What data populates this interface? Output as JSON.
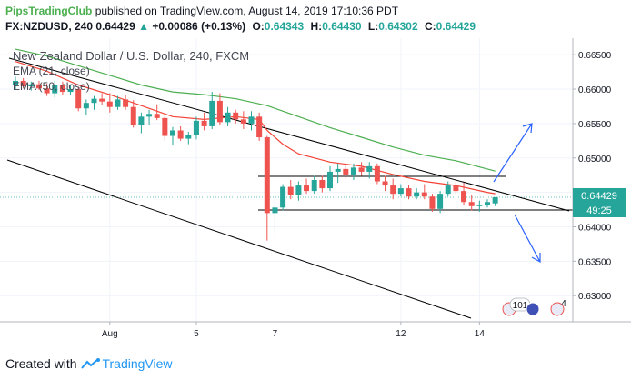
{
  "header": {
    "brand": "PipsTradingClub",
    "published": "published on TradingView.com, August 14, 2019 17:10:36 PDT",
    "symbol": "FX:NZDUSD, 240",
    "last": "0.64429",
    "change": "+0.00086 (+0.13%)",
    "o_label": "O:",
    "o": "0.64343",
    "h_label": "H:",
    "h": "0.64430",
    "l_label": "L:",
    "l": "0.64302",
    "c_label": "C:",
    "c": "0.64429"
  },
  "legend": {
    "title": "New Zealand Dollar / U.S. Dollar, 240, FXCM",
    "ema1": "EMA (21, close)",
    "ema2": "EMA (50, close)"
  },
  "footer": {
    "prefix": "Created with",
    "brand": "TradingView"
  },
  "price_tag": {
    "value": "0.64429",
    "countdown": "49:25"
  },
  "event_badges": [
    "101",
    "4"
  ],
  "colors": {
    "up": "#26a69a",
    "down": "#ef5350",
    "ema21": "#f44336",
    "ema50": "#4caf50",
    "trend": "#000000",
    "arrow": "#2962ff",
    "tag": "#26a69a",
    "brand": "#4caf50"
  },
  "chart_data": {
    "type": "candlestick",
    "title": "New Zealand Dollar / U.S. Dollar, 240, FXCM",
    "ylim": [
      0.6262,
      0.6674
    ],
    "y_ticks": [
      0.665,
      0.66,
      0.655,
      0.65,
      0.645,
      0.64,
      0.635,
      0.63
    ],
    "y_tick_labels": [
      "0.66500",
      "0.66000",
      "0.65500",
      "0.65000",
      "0.64500",
      "0.64000",
      "0.63500",
      "0.63000"
    ],
    "x_ticks": [
      {
        "label": "Aug",
        "index": 12
      },
      {
        "label": "5",
        "index": 23
      },
      {
        "label": "7",
        "index": 33
      },
      {
        "label": "12",
        "index": 49
      },
      {
        "label": "14",
        "index": 59
      }
    ],
    "candles": [
      {
        "o": 0.6606,
        "h": 0.6618,
        "l": 0.66,
        "c": 0.6612
      },
      {
        "o": 0.6612,
        "h": 0.6616,
        "l": 0.6601,
        "c": 0.6604
      },
      {
        "o": 0.6604,
        "h": 0.6611,
        "l": 0.6598,
        "c": 0.6607
      },
      {
        "o": 0.6607,
        "h": 0.6612,
        "l": 0.6599,
        "c": 0.6601
      },
      {
        "o": 0.6601,
        "h": 0.6608,
        "l": 0.659,
        "c": 0.6594
      },
      {
        "o": 0.6594,
        "h": 0.6612,
        "l": 0.6588,
        "c": 0.6606
      },
      {
        "o": 0.6606,
        "h": 0.6611,
        "l": 0.6592,
        "c": 0.6596
      },
      {
        "o": 0.6596,
        "h": 0.6606,
        "l": 0.6591,
        "c": 0.66
      },
      {
        "o": 0.66,
        "h": 0.6603,
        "l": 0.6568,
        "c": 0.6572
      },
      {
        "o": 0.6572,
        "h": 0.6585,
        "l": 0.6562,
        "c": 0.658
      },
      {
        "o": 0.658,
        "h": 0.659,
        "l": 0.657,
        "c": 0.6586
      },
      {
        "o": 0.6586,
        "h": 0.6594,
        "l": 0.6577,
        "c": 0.6582
      },
      {
        "o": 0.6582,
        "h": 0.6594,
        "l": 0.6566,
        "c": 0.6574
      },
      {
        "o": 0.6574,
        "h": 0.659,
        "l": 0.657,
        "c": 0.6585
      },
      {
        "o": 0.6585,
        "h": 0.6592,
        "l": 0.657,
        "c": 0.6574
      },
      {
        "o": 0.6574,
        "h": 0.6584,
        "l": 0.6544,
        "c": 0.6548
      },
      {
        "o": 0.6548,
        "h": 0.6566,
        "l": 0.6536,
        "c": 0.656
      },
      {
        "o": 0.656,
        "h": 0.657,
        "l": 0.6548,
        "c": 0.6564
      },
      {
        "o": 0.6564,
        "h": 0.6578,
        "l": 0.6555,
        "c": 0.6558
      },
      {
        "o": 0.6558,
        "h": 0.6562,
        "l": 0.6525,
        "c": 0.6532
      },
      {
        "o": 0.6532,
        "h": 0.6545,
        "l": 0.6518,
        "c": 0.654
      },
      {
        "o": 0.654,
        "h": 0.6546,
        "l": 0.6525,
        "c": 0.6528
      },
      {
        "o": 0.6528,
        "h": 0.6538,
        "l": 0.652,
        "c": 0.6534
      },
      {
        "o": 0.6534,
        "h": 0.656,
        "l": 0.6527,
        "c": 0.6554
      },
      {
        "o": 0.6554,
        "h": 0.6566,
        "l": 0.654,
        "c": 0.6546
      },
      {
        "o": 0.6546,
        "h": 0.6596,
        "l": 0.6542,
        "c": 0.6583
      },
      {
        "o": 0.6583,
        "h": 0.6594,
        "l": 0.6548,
        "c": 0.6552
      },
      {
        "o": 0.6552,
        "h": 0.6574,
        "l": 0.6546,
        "c": 0.6566
      },
      {
        "o": 0.6566,
        "h": 0.657,
        "l": 0.655,
        "c": 0.6556
      },
      {
        "o": 0.6556,
        "h": 0.6568,
        "l": 0.6542,
        "c": 0.655
      },
      {
        "o": 0.655,
        "h": 0.6568,
        "l": 0.654,
        "c": 0.656
      },
      {
        "o": 0.656,
        "h": 0.6566,
        "l": 0.6525,
        "c": 0.653
      },
      {
        "o": 0.653,
        "h": 0.6532,
        "l": 0.638,
        "c": 0.642
      },
      {
        "o": 0.642,
        "h": 0.644,
        "l": 0.639,
        "c": 0.6428
      },
      {
        "o": 0.6428,
        "h": 0.6462,
        "l": 0.6424,
        "c": 0.6458
      },
      {
        "o": 0.6458,
        "h": 0.6468,
        "l": 0.644,
        "c": 0.6446
      },
      {
        "o": 0.6446,
        "h": 0.6466,
        "l": 0.6438,
        "c": 0.646
      },
      {
        "o": 0.646,
        "h": 0.647,
        "l": 0.6448,
        "c": 0.6452
      },
      {
        "o": 0.6452,
        "h": 0.6474,
        "l": 0.6448,
        "c": 0.6468
      },
      {
        "o": 0.6468,
        "h": 0.6474,
        "l": 0.645,
        "c": 0.6456
      },
      {
        "o": 0.6456,
        "h": 0.6488,
        "l": 0.6452,
        "c": 0.648
      },
      {
        "o": 0.648,
        "h": 0.6492,
        "l": 0.6464,
        "c": 0.6484
      },
      {
        "o": 0.6484,
        "h": 0.649,
        "l": 0.647,
        "c": 0.6476
      },
      {
        "o": 0.6476,
        "h": 0.6492,
        "l": 0.6468,
        "c": 0.6486
      },
      {
        "o": 0.6486,
        "h": 0.6494,
        "l": 0.6474,
        "c": 0.648
      },
      {
        "o": 0.648,
        "h": 0.6494,
        "l": 0.647,
        "c": 0.6488
      },
      {
        "o": 0.6488,
        "h": 0.6492,
        "l": 0.6462,
        "c": 0.6466
      },
      {
        "o": 0.6466,
        "h": 0.6474,
        "l": 0.6452,
        "c": 0.646
      },
      {
        "o": 0.646,
        "h": 0.647,
        "l": 0.644,
        "c": 0.6448
      },
      {
        "o": 0.6448,
        "h": 0.6462,
        "l": 0.6444,
        "c": 0.6456
      },
      {
        "o": 0.6456,
        "h": 0.646,
        "l": 0.644,
        "c": 0.6444
      },
      {
        "o": 0.6444,
        "h": 0.6456,
        "l": 0.644,
        "c": 0.645
      },
      {
        "o": 0.645,
        "h": 0.6462,
        "l": 0.644,
        "c": 0.6444
      },
      {
        "o": 0.6444,
        "h": 0.6448,
        "l": 0.6422,
        "c": 0.6426
      },
      {
        "o": 0.6426,
        "h": 0.6452,
        "l": 0.642,
        "c": 0.6448
      },
      {
        "o": 0.6448,
        "h": 0.6466,
        "l": 0.6444,
        "c": 0.646
      },
      {
        "o": 0.646,
        "h": 0.6466,
        "l": 0.6448,
        "c": 0.6452
      },
      {
        "o": 0.6452,
        "h": 0.6464,
        "l": 0.6432,
        "c": 0.6436
      },
      {
        "o": 0.6436,
        "h": 0.6446,
        "l": 0.6424,
        "c": 0.643
      },
      {
        "o": 0.643,
        "h": 0.6438,
        "l": 0.6422,
        "c": 0.6432
      },
      {
        "o": 0.6432,
        "h": 0.644,
        "l": 0.6428,
        "c": 0.6436
      },
      {
        "o": 0.6434,
        "h": 0.6443,
        "l": 0.643,
        "c": 0.6443
      }
    ],
    "ema21": [
      [
        0,
        0.664
      ],
      [
        4,
        0.6626
      ],
      [
        8,
        0.6606
      ],
      [
        12,
        0.6592
      ],
      [
        16,
        0.6576
      ],
      [
        20,
        0.656
      ],
      [
        24,
        0.6556
      ],
      [
        28,
        0.656
      ],
      [
        31,
        0.6556
      ],
      [
        32,
        0.654
      ],
      [
        34,
        0.652
      ],
      [
        36,
        0.6506
      ],
      [
        40,
        0.6494
      ],
      [
        44,
        0.6488
      ],
      [
        48,
        0.6476
      ],
      [
        52,
        0.6466
      ],
      [
        56,
        0.646
      ],
      [
        60,
        0.645
      ],
      [
        61,
        0.6448
      ]
    ],
    "ema50": [
      [
        0,
        0.6658
      ],
      [
        4,
        0.6648
      ],
      [
        8,
        0.6634
      ],
      [
        12,
        0.662
      ],
      [
        16,
        0.6606
      ],
      [
        20,
        0.6596
      ],
      [
        24,
        0.6592
      ],
      [
        28,
        0.6586
      ],
      [
        32,
        0.6576
      ],
      [
        36,
        0.656
      ],
      [
        40,
        0.6544
      ],
      [
        44,
        0.653
      ],
      [
        48,
        0.6516
      ],
      [
        52,
        0.6504
      ],
      [
        56,
        0.6496
      ],
      [
        60,
        0.6484
      ],
      [
        61,
        0.6481
      ]
    ],
    "current_price": 0.64429
  }
}
